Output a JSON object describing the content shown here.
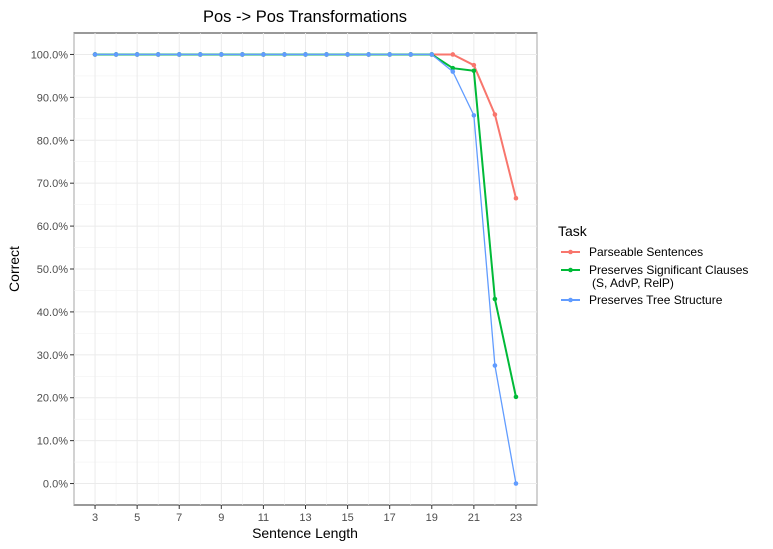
{
  "chart_data": {
    "type": "line",
    "title": "Pos -> Pos Transformations",
    "xlabel": "Sentence Length",
    "ylabel": "Correct",
    "x_ticks": [
      "3",
      "5",
      "7",
      "9",
      "11",
      "13",
      "15",
      "17",
      "19",
      "21",
      "23"
    ],
    "y_ticks": [
      "0.0%",
      "10.0%",
      "20.0%",
      "30.0%",
      "40.0%",
      "50.0%",
      "60.0%",
      "70.0%",
      "80.0%",
      "90.0%",
      "100.0%"
    ],
    "xlim": [
      2.0,
      24.0
    ],
    "ylim": [
      -5.0,
      105.0
    ],
    "grid": true,
    "legend_title": "Task",
    "legend_position": "right",
    "x": [
      3,
      4,
      5,
      6,
      7,
      8,
      9,
      10,
      11,
      12,
      13,
      14,
      15,
      16,
      17,
      18,
      19,
      20,
      21,
      22,
      23
    ],
    "series": [
      {
        "name": "Parseable Sentences",
        "color": "#f8766d",
        "values": [
          100,
          100,
          100,
          100,
          100,
          100,
          100,
          100,
          100,
          100,
          100,
          100,
          100,
          100,
          100,
          100,
          100,
          100,
          97.5,
          86,
          66.5
        ]
      },
      {
        "name": "Preserves Significant Clauses",
        "name_line2": "(S, AdvP, RelP)",
        "color": "#00ba38",
        "values": [
          100,
          100,
          100,
          100,
          100,
          100,
          100,
          100,
          100,
          100,
          100,
          100,
          100,
          100,
          100,
          100,
          100,
          96.8,
          96.2,
          43,
          20.2
        ]
      },
      {
        "name": "Preserves Tree Structure",
        "color": "#619cff",
        "values": [
          100,
          100,
          100,
          100,
          100,
          100,
          100,
          100,
          100,
          100,
          100,
          100,
          100,
          100,
          100,
          100,
          100,
          96,
          85.8,
          27.5,
          0
        ]
      }
    ]
  }
}
